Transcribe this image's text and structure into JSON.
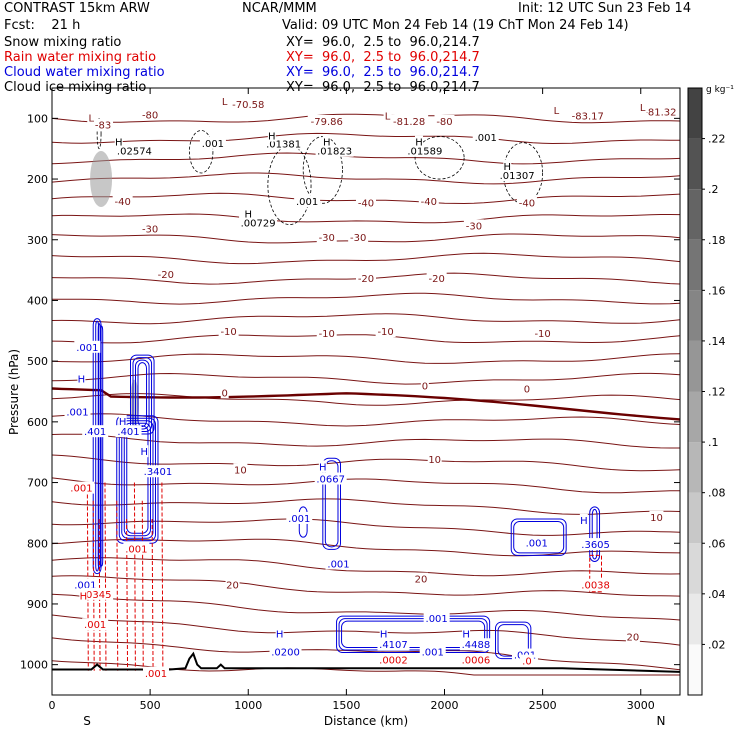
{
  "header": {
    "model": "CONTRAST 15km ARW",
    "center": "NCAR/MMM",
    "init": "Init: 12 UTC Sun 23 Feb 14",
    "fcst": "Fcst:    21 h",
    "valid": "Valid: 09 UTC Mon 24 Feb 14 (19 ChT Mon 24 Feb 14)",
    "fields": [
      {
        "name": "Snow mixing ratio",
        "xy": "XY=  96.0,  2.5 to  96.0,214.7",
        "color": "#000000"
      },
      {
        "name": "Rain water mixing ratio",
        "xy": "XY=  96.0,  2.5 to  96.0,214.7",
        "color": "#e00000"
      },
      {
        "name": "Cloud water mixing ratio",
        "xy": "XY=  96.0,  2.5 to  96.0,214.7",
        "color": "#0000dd"
      },
      {
        "name": "Cloud ice mixing ratio",
        "xy": "XY=  96.0,  2.5 to  96.0,214.7",
        "color": "#000000"
      }
    ]
  },
  "colors": {
    "temperature": "#7a1515",
    "zero_isotherm": "#6a0000",
    "rain": "#e00000",
    "cloud": "#0000dd",
    "ice": "#000000",
    "terrain": "#000000"
  },
  "chart_data": {
    "type": "contour cross-section",
    "xlabel": "Distance (km)",
    "ylabel": "Pressure (hPa)",
    "x_ticks": [
      0,
      500,
      1000,
      1500,
      2000,
      2500,
      3000
    ],
    "y_ticks": [
      100,
      200,
      300,
      400,
      500,
      600,
      700,
      800,
      900,
      1000
    ],
    "xlim": [
      0,
      3200
    ],
    "ylim": [
      1050,
      50
    ],
    "x_ends": {
      "left": "S",
      "right": "N"
    },
    "colorbar": {
      "unit": "g kg⁻¹",
      "ticks": [
        ".02",
        ".04",
        ".06",
        ".08",
        ".1",
        ".12",
        ".14",
        ".16",
        ".18",
        ".2",
        ".22"
      ],
      "range": [
        0,
        0.24
      ]
    },
    "temperature_contours": [
      {
        "value": -80,
        "label": "-80",
        "label_x": 480,
        "label_p": 95
      },
      {
        "value": -40,
        "label": "-40",
        "label_x": 350,
        "label_p": 238
      },
      {
        "value": -30,
        "label": "-30",
        "label_x": 500,
        "label_p": 283
      },
      {
        "value": -20,
        "label": "-20",
        "label_x": 560,
        "label_p": 360
      },
      {
        "value": -10,
        "label": "-10",
        "label_x": 900,
        "label_p": 452
      },
      {
        "value": 0,
        "label": "0",
        "label_x": 880,
        "label_p": 553
      },
      {
        "value": 10,
        "label": "10",
        "label_x": 960,
        "label_p": 680
      },
      {
        "value": 20,
        "label": "20",
        "label_x": 1300,
        "label_p": 868
      }
    ],
    "temperature_labels": [
      {
        "text": "-70.58",
        "x": 1000,
        "p": 78
      },
      {
        "text": "-80",
        "x": 500,
        "p": 95
      },
      {
        "text": "-83",
        "x": 260,
        "p": 112
      },
      {
        "text": "-79.86",
        "x": 1400,
        "p": 106
      },
      {
        "text": "-81.28",
        "x": 1820,
        "p": 106
      },
      {
        "text": "-80",
        "x": 2000,
        "p": 106
      },
      {
        "text": "-83.17",
        "x": 2730,
        "p": 97
      },
      {
        "text": "-81.32",
        "x": 3100,
        "p": 90
      },
      {
        "text": "-40",
        "x": 360,
        "p": 238
      },
      {
        "text": "-40",
        "x": 1600,
        "p": 240
      },
      {
        "text": "-40",
        "x": 1920,
        "p": 238
      },
      {
        "text": "-40",
        "x": 2420,
        "p": 240
      },
      {
        "text": "-30",
        "x": 500,
        "p": 283
      },
      {
        "text": "-30",
        "x": 1400,
        "p": 297
      },
      {
        "text": "-30",
        "x": 1560,
        "p": 297
      },
      {
        "text": "-30",
        "x": 2150,
        "p": 278
      },
      {
        "text": "-20",
        "x": 580,
        "p": 358
      },
      {
        "text": "-20",
        "x": 1600,
        "p": 365
      },
      {
        "text": "-20",
        "x": 1960,
        "p": 365
      },
      {
        "text": "-10",
        "x": 900,
        "p": 452
      },
      {
        "text": "-10",
        "x": 1400,
        "p": 455
      },
      {
        "text": "-10",
        "x": 1700,
        "p": 452
      },
      {
        "text": "-10",
        "x": 2500,
        "p": 455
      },
      {
        "text": "0",
        "x": 880,
        "p": 553
      },
      {
        "text": "0",
        "x": 1900,
        "p": 542
      },
      {
        "text": "0",
        "x": 2420,
        "p": 547
      },
      {
        "text": "10",
        "x": 960,
        "p": 680
      },
      {
        "text": "10",
        "x": 1950,
        "p": 663
      },
      {
        "text": "10",
        "x": 3080,
        "p": 758
      },
      {
        "text": "20",
        "x": 920,
        "p": 870
      },
      {
        "text": "20",
        "x": 1880,
        "p": 860
      },
      {
        "text": "20",
        "x": 2960,
        "p": 955
      }
    ],
    "extrema_labels": [
      {
        "text": "L",
        "x": 880,
        "p": 73,
        "color": "#7a1515"
      },
      {
        "text": "L",
        "x": 200,
        "p": 100,
        "color": "#7a1515"
      },
      {
        "text": "L",
        "x": 1710,
        "p": 97,
        "color": "#7a1515"
      },
      {
        "text": "L",
        "x": 2570,
        "p": 88,
        "color": "#7a1515"
      },
      {
        "text": "L",
        "x": 3010,
        "p": 83,
        "color": "#7a1515"
      },
      {
        "text": "H",
        "x": 340,
        "p": 140,
        "color": "#000000"
      },
      {
        "text": "H",
        "x": 1120,
        "p": 130,
        "color": "#000000"
      },
      {
        "text": "H",
        "x": 1400,
        "p": 140,
        "color": "#000000"
      },
      {
        "text": "H",
        "x": 1870,
        "p": 140,
        "color": "#000000"
      },
      {
        "text": "H",
        "x": 2320,
        "p": 180,
        "color": "#000000"
      },
      {
        "text": "H",
        "x": 1000,
        "p": 258,
        "color": "#000000"
      },
      {
        "text": "H",
        "x": 1380,
        "p": 675,
        "color": "#0000dd"
      },
      {
        "text": "H",
        "x": 2710,
        "p": 763,
        "color": "#0000dd"
      },
      {
        "text": "H",
        "x": 1160,
        "p": 950,
        "color": "#0000dd"
      },
      {
        "text": "H",
        "x": 1690,
        "p": 950,
        "color": "#0000dd"
      },
      {
        "text": "H",
        "x": 2110,
        "p": 950,
        "color": "#0000dd"
      },
      {
        "text": "H",
        "x": 150,
        "p": 530,
        "color": "#0000dd"
      },
      {
        "text": "H",
        "x": 360,
        "p": 600,
        "color": "#0000dd"
      },
      {
        "text": "H",
        "x": 470,
        "p": 650,
        "color": "#0000dd"
      },
      {
        "text": "H",
        "x": 160,
        "p": 888,
        "color": "#e00000"
      }
    ],
    "ice_labels": [
      {
        "text": ".001",
        "x": 820,
        "p": 142
      },
      {
        "text": ".02574",
        "x": 420,
        "p": 155
      },
      {
        "text": ".01381",
        "x": 1180,
        "p": 143
      },
      {
        "text": ".01823",
        "x": 1440,
        "p": 155
      },
      {
        "text": ".01589",
        "x": 1900,
        "p": 155
      },
      {
        "text": ".001",
        "x": 2210,
        "p": 132
      },
      {
        "text": ".01307",
        "x": 2370,
        "p": 195
      },
      {
        "text": ".001",
        "x": 1300,
        "p": 238
      },
      {
        "text": ".00729",
        "x": 1050,
        "p": 273
      }
    ],
    "cloud_labels": [
      {
        "text": ".001",
        "x": 180,
        "p": 478
      },
      {
        "text": ".001",
        "x": 130,
        "p": 585
      },
      {
        "text": ".401",
        "x": 220,
        "p": 617
      },
      {
        "text": ".401",
        "x": 390,
        "p": 617
      },
      {
        "text": ".3401",
        "x": 540,
        "p": 683
      },
      {
        "text": ".0667",
        "x": 1420,
        "p": 695
      },
      {
        "text": ".001",
        "x": 1260,
        "p": 760
      },
      {
        "text": ".001",
        "x": 1460,
        "p": 835
      },
      {
        "text": ".001",
        "x": 2470,
        "p": 800
      },
      {
        "text": ".3605",
        "x": 2770,
        "p": 803
      },
      {
        "text": ".001",
        "x": 1960,
        "p": 925
      },
      {
        "text": ".4107",
        "x": 1740,
        "p": 968
      },
      {
        "text": ".001",
        "x": 1940,
        "p": 980
      },
      {
        "text": ".4488",
        "x": 2160,
        "p": 968
      },
      {
        "text": ".001",
        "x": 2410,
        "p": 985
      },
      {
        "text": ".0200",
        "x": 1190,
        "p": 980
      },
      {
        "text": ".001",
        "x": 170,
        "p": 870
      }
    ],
    "rain_labels": [
      {
        "text": ".001",
        "x": 150,
        "p": 710
      },
      {
        "text": ".001",
        "x": 430,
        "p": 810
      },
      {
        "text": ".0345",
        "x": 230,
        "p": 885
      },
      {
        "text": ".001",
        "x": 220,
        "p": 935
      },
      {
        "text": ".0002",
        "x": 1740,
        "p": 993
      },
      {
        "text": ".0006",
        "x": 2160,
        "p": 993
      },
      {
        "text": ".0038",
        "x": 2770,
        "p": 870
      },
      {
        "text": ".0",
        "x": 2420,
        "p": 995
      },
      {
        "text": ".001",
        "x": 530,
        "p": 1015
      }
    ]
  }
}
